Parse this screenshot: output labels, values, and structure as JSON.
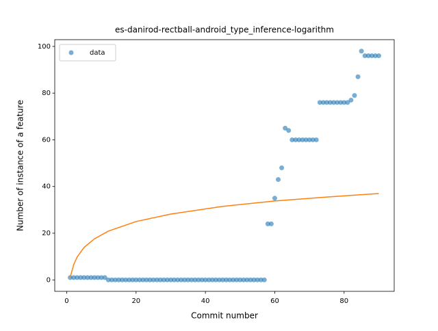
{
  "chart_data": {
    "type": "scatter",
    "title": "es-danirod-rectball-android_type_inference-logarithm",
    "xlabel": "Commit number",
    "ylabel": "Number of instance of a feature",
    "series": [
      {
        "name": "data",
        "type": "scatter",
        "color": "#1f77b4",
        "x": [
          1,
          2,
          3,
          4,
          5,
          6,
          7,
          8,
          9,
          10,
          11,
          12,
          13,
          14,
          15,
          16,
          17,
          18,
          19,
          20,
          21,
          22,
          23,
          24,
          25,
          26,
          27,
          28,
          29,
          30,
          31,
          32,
          33,
          34,
          35,
          36,
          37,
          38,
          39,
          40,
          41,
          42,
          43,
          44,
          45,
          46,
          47,
          48,
          49,
          50,
          51,
          52,
          53,
          54,
          55,
          56,
          57,
          58,
          59,
          60,
          61,
          62,
          63,
          64,
          65,
          66,
          67,
          68,
          69,
          70,
          71,
          72,
          73,
          74,
          75,
          76,
          77,
          78,
          79,
          80,
          81,
          82,
          83,
          84,
          85,
          86,
          87,
          88,
          89,
          90
        ],
        "values": [
          1,
          1,
          1,
          1,
          1,
          1,
          1,
          1,
          1,
          1,
          1,
          0,
          0,
          0,
          0,
          0,
          0,
          0,
          0,
          0,
          0,
          0,
          0,
          0,
          0,
          0,
          0,
          0,
          0,
          0,
          0,
          0,
          0,
          0,
          0,
          0,
          0,
          0,
          0,
          0,
          0,
          0,
          0,
          0,
          0,
          0,
          0,
          0,
          0,
          0,
          0,
          0,
          0,
          0,
          0,
          0,
          0,
          24,
          24,
          35,
          43,
          48,
          65,
          64,
          60,
          60,
          60,
          60,
          60,
          60,
          60,
          60,
          76,
          76,
          76,
          76,
          76,
          76,
          76,
          76,
          76,
          77,
          79,
          87,
          98,
          96,
          96,
          96,
          96,
          96
        ]
      },
      {
        "type": "line",
        "color": "#ff7f0e",
        "x": [
          1,
          2,
          3,
          5,
          8,
          12,
          20,
          30,
          45,
          60,
          75,
          90
        ],
        "values": [
          1,
          6.5,
          9.8,
          13.9,
          17.6,
          20.9,
          25,
          28.2,
          31.5,
          33.8,
          35.5,
          37
        ]
      }
    ],
    "xlim": [
      -3.45,
      94.45
    ],
    "ylim": [
      -4.9,
      102.9
    ],
    "xticks": [
      0,
      20,
      40,
      60,
      80
    ],
    "yticks": [
      0,
      20,
      40,
      60,
      80,
      100
    ],
    "legend": "upper left"
  }
}
